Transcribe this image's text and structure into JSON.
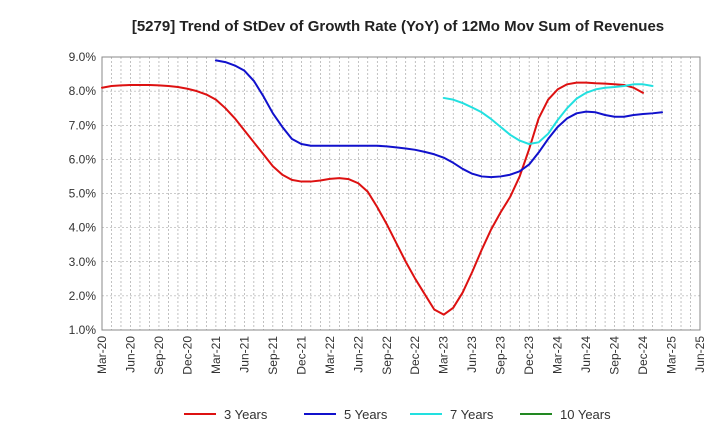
{
  "chart_data": {
    "type": "line",
    "title": "[5279]  Trend of StDev of Growth Rate (YoY) of 12Mo Mov Sum of Revenues",
    "xlabel": "",
    "ylabel": "",
    "ylim": [
      1.0,
      9.0
    ],
    "yticks": [
      "1.0%",
      "2.0%",
      "3.0%",
      "4.0%",
      "5.0%",
      "6.0%",
      "7.0%",
      "8.0%",
      "9.0%"
    ],
    "xticks": [
      "Mar-20",
      "Jun-20",
      "Sep-20",
      "Dec-20",
      "Mar-21",
      "Jun-21",
      "Sep-21",
      "Dec-21",
      "Mar-22",
      "Jun-22",
      "Sep-22",
      "Dec-22",
      "Mar-23",
      "Jun-23",
      "Sep-23",
      "Dec-23",
      "Mar-24",
      "Jun-24",
      "Sep-24",
      "Dec-24",
      "Mar-25",
      "Jun-25"
    ],
    "grid": true,
    "legend_position": "bottom",
    "series": [
      {
        "name": "3 Years",
        "color": "#dd1111",
        "start_index": 0,
        "values": [
          8.1,
          8.15,
          8.17,
          8.18,
          8.18,
          8.18,
          8.17,
          8.15,
          8.12,
          8.07,
          8.0,
          7.9,
          7.75,
          7.5,
          7.2,
          6.85,
          6.5,
          6.15,
          5.8,
          5.55,
          5.4,
          5.35,
          5.35,
          5.38,
          5.43,
          5.45,
          5.42,
          5.3,
          5.05,
          4.6,
          4.1,
          3.55,
          3.0,
          2.5,
          2.05,
          1.6,
          1.45,
          1.65,
          2.1,
          2.7,
          3.35,
          3.95,
          4.45,
          4.9,
          5.5,
          6.3,
          7.2,
          7.75,
          8.05,
          8.2,
          8.25,
          8.25,
          8.23,
          8.22,
          8.2,
          8.18,
          8.1,
          7.95
        ]
      },
      {
        "name": "5 Years",
        "color": "#1111cc",
        "start_index": 12,
        "values": [
          8.9,
          8.85,
          8.75,
          8.6,
          8.3,
          7.85,
          7.35,
          6.95,
          6.6,
          6.45,
          6.4,
          6.4,
          6.4,
          6.4,
          6.4,
          6.4,
          6.4,
          6.4,
          6.38,
          6.35,
          6.32,
          6.28,
          6.22,
          6.15,
          6.05,
          5.9,
          5.72,
          5.58,
          5.5,
          5.48,
          5.5,
          5.55,
          5.65,
          5.85,
          6.2,
          6.6,
          6.95,
          7.2,
          7.35,
          7.4,
          7.38,
          7.3,
          7.25,
          7.25,
          7.3,
          7.33,
          7.35,
          7.38
        ]
      },
      {
        "name": "7 Years",
        "color": "#22e0e0",
        "start_index": 36,
        "values": [
          7.8,
          7.75,
          7.65,
          7.52,
          7.38,
          7.18,
          6.95,
          6.72,
          6.55,
          6.45,
          6.5,
          6.75,
          7.15,
          7.5,
          7.78,
          7.95,
          8.05,
          8.1,
          8.12,
          8.15,
          8.2,
          8.2,
          8.15
        ]
      },
      {
        "name": "10 Years",
        "color": "#228822",
        "start_index": 0,
        "values": []
      }
    ]
  }
}
